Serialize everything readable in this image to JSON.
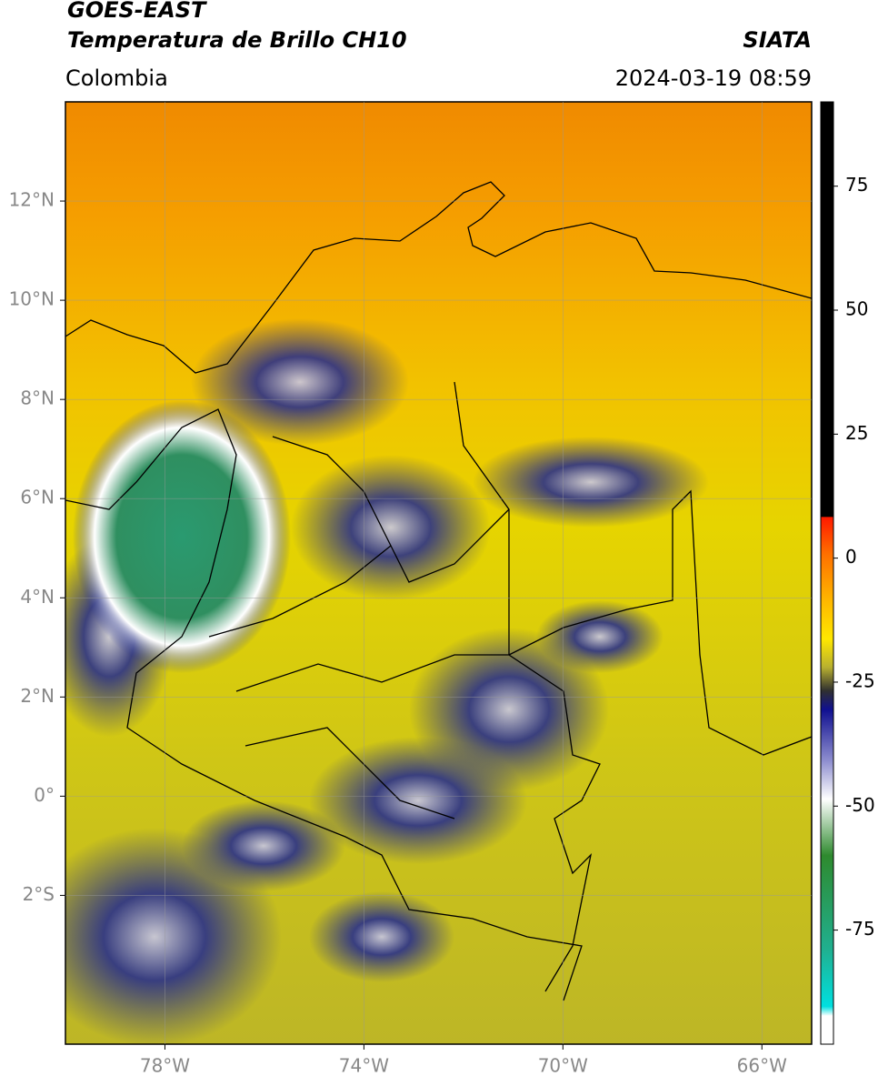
{
  "header": {
    "title": "GOES-EAST",
    "subtitle": "Temperatura de Brillo CH10",
    "source": "SIATA",
    "region": "Colombia",
    "datetime": "2024-03-19 08:59"
  },
  "map": {
    "xlim": [
      -80,
      -65
    ],
    "ylim": [
      -5,
      14
    ],
    "grid": true,
    "xticks": [
      {
        "value": -78,
        "label": "78°W"
      },
      {
        "value": -74,
        "label": "74°W"
      },
      {
        "value": -70,
        "label": "70°W"
      },
      {
        "value": -66,
        "label": "66°W"
      }
    ],
    "yticks": [
      {
        "value": 12,
        "label": "12°N"
      },
      {
        "value": 10,
        "label": "10°N"
      },
      {
        "value": 8,
        "label": "8°N"
      },
      {
        "value": 6,
        "label": "6°N"
      },
      {
        "value": 4,
        "label": "4°N"
      },
      {
        "value": 2,
        "label": "2°N"
      },
      {
        "value": 0,
        "label": "0°"
      },
      {
        "value": -2,
        "label": "2°S"
      }
    ]
  },
  "colorbar": {
    "clim": [
      -98,
      92
    ],
    "ticks": [
      75,
      50,
      25,
      0,
      -25,
      -50,
      -75
    ]
  }
}
